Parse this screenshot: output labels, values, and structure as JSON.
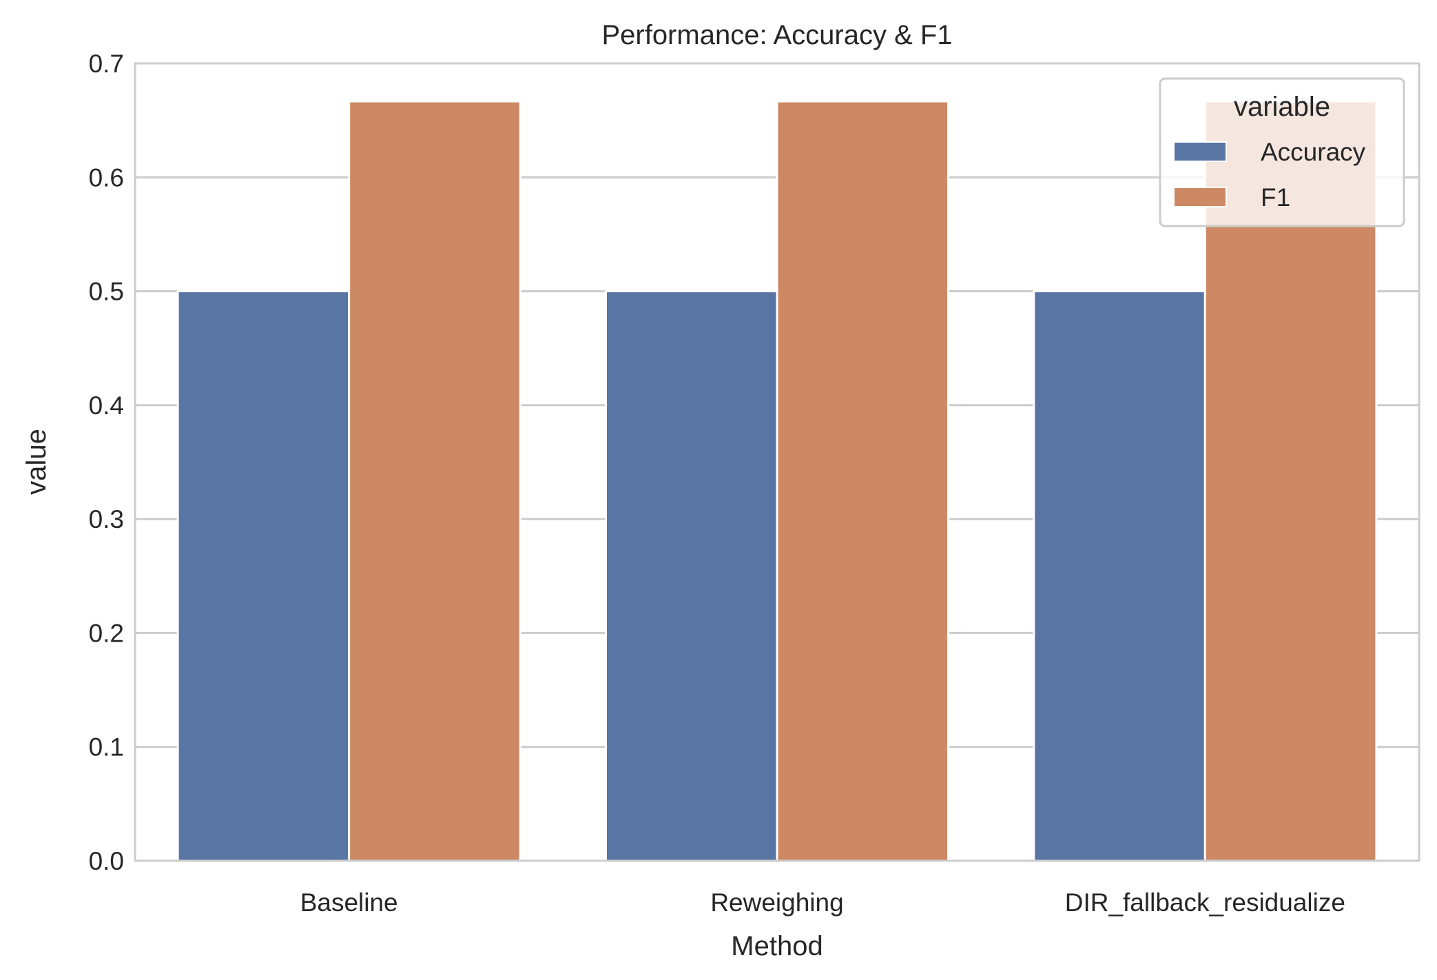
{
  "chart_data": {
    "type": "bar",
    "title": "Performance: Accuracy & F1",
    "xlabel": "Method",
    "ylabel": "value",
    "categories": [
      "Baseline",
      "Reweighing",
      "DIR_fallback_residualize"
    ],
    "series": [
      {
        "name": "Accuracy",
        "values": [
          0.5,
          0.5,
          0.5
        ],
        "color": "#5975a4"
      },
      {
        "name": "F1",
        "values": [
          0.6667,
          0.6667,
          0.6667
        ],
        "color": "#cc8963"
      }
    ],
    "ylim": [
      0,
      0.7
    ],
    "yticks": [
      "0.0",
      "0.1",
      "0.2",
      "0.3",
      "0.4",
      "0.5",
      "0.6",
      "0.7"
    ],
    "grid": "horizontal",
    "legend": {
      "title": "variable",
      "position": "top-right"
    }
  }
}
